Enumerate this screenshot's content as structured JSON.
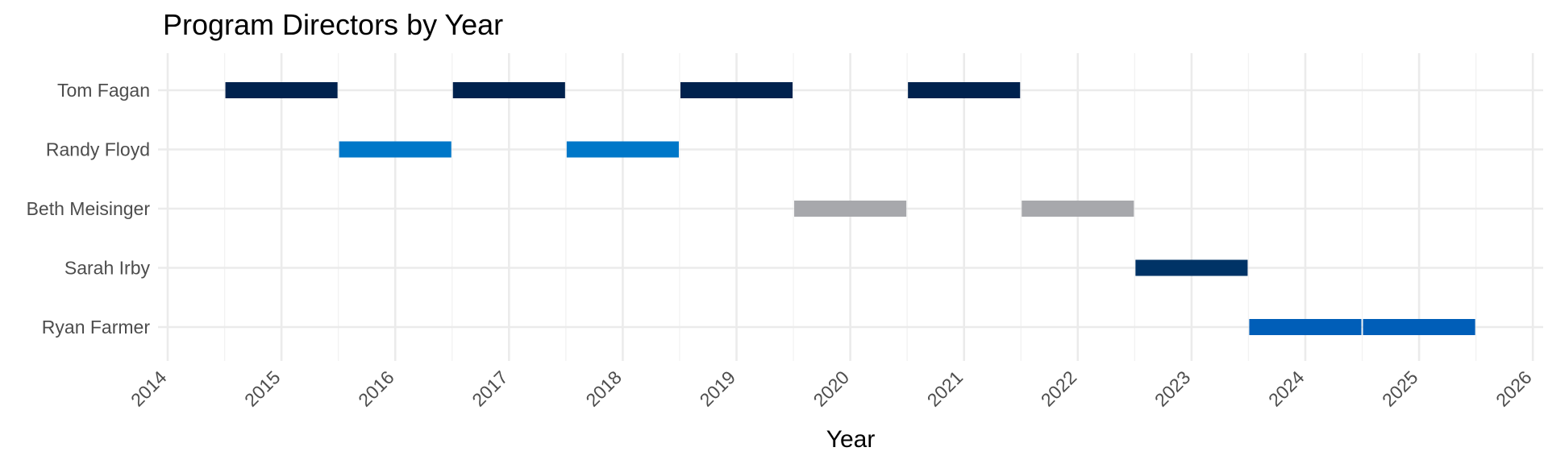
{
  "chart_data": {
    "type": "bar",
    "orientation": "horizontal-timeline",
    "title": "Program Directors by Year",
    "xlabel": "Year",
    "ylabel": "",
    "xlim": [
      2014,
      2026
    ],
    "x_ticks": [
      2014,
      2015,
      2016,
      2017,
      2018,
      2019,
      2020,
      2021,
      2022,
      2023,
      2024,
      2025,
      2026
    ],
    "categories": [
      "Tom Fagan",
      "Randy Floyd",
      "Beth Meisinger",
      "Sarah Irby",
      "Ryan Farmer"
    ],
    "grid": true,
    "legend": "none",
    "colors": {
      "Tom Fagan": "#00224e",
      "Randy Floyd": "#0077c8",
      "Beth Meisinger": "#a7a8ac",
      "Sarah Irby": "#003366",
      "Ryan Farmer": "#005eb8"
    },
    "segments": [
      {
        "director": "Tom Fagan",
        "year": 2015
      },
      {
        "director": "Randy Floyd",
        "year": 2016
      },
      {
        "director": "Tom Fagan",
        "year": 2017
      },
      {
        "director": "Randy Floyd",
        "year": 2018
      },
      {
        "director": "Tom Fagan",
        "year": 2019
      },
      {
        "director": "Beth Meisinger",
        "year": 2020
      },
      {
        "director": "Tom Fagan",
        "year": 2021
      },
      {
        "director": "Beth Meisinger",
        "year": 2022
      },
      {
        "director": "Sarah Irby",
        "year": 2023
      },
      {
        "director": "Ryan Farmer",
        "year": 2024
      },
      {
        "director": "Ryan Farmer",
        "year": 2025
      }
    ]
  }
}
